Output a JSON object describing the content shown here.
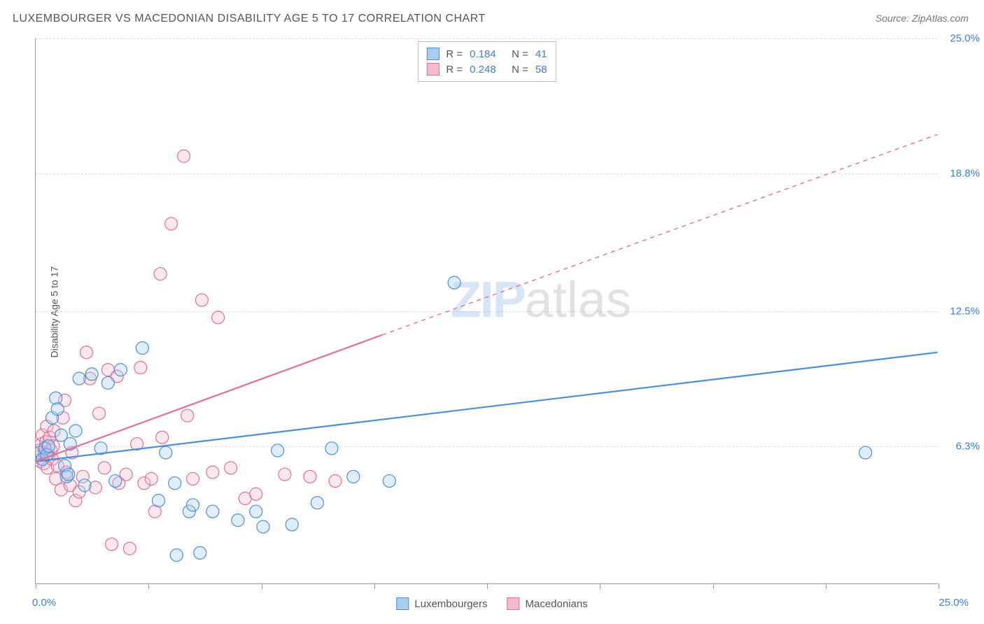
{
  "title": "LUXEMBOURGER VS MACEDONIAN DISABILITY AGE 5 TO 17 CORRELATION CHART",
  "source": "Source: ZipAtlas.com",
  "ylabel": "Disability Age 5 to 17",
  "watermark": {
    "zip": "ZIP",
    "atlas": "atlas"
  },
  "chart": {
    "type": "scatter",
    "xlim": [
      0,
      25
    ],
    "ylim": [
      0,
      25
    ],
    "x_origin_label": "0.0%",
    "x_max_label": "25.0%",
    "y_ticks": [
      {
        "v": 6.3,
        "label": "6.3%"
      },
      {
        "v": 12.5,
        "label": "12.5%"
      },
      {
        "v": 18.8,
        "label": "18.8%"
      },
      {
        "v": 25.0,
        "label": "25.0%"
      }
    ],
    "x_tick_positions": [
      0,
      3.125,
      6.25,
      9.375,
      12.5,
      15.625,
      18.75,
      21.875,
      25
    ],
    "grid_color": "#dddddd",
    "axis_color": "#999999",
    "background_color": "#ffffff",
    "marker_radius": 9,
    "marker_stroke_width": 1.2,
    "marker_fill_opacity": 0.35,
    "line_width": 2.2
  },
  "series": [
    {
      "key": "luxembourgers",
      "name": "Luxembourgers",
      "color_stroke": "#4a8fd9",
      "color_fill": "#a9cdf0",
      "r_value": "0.184",
      "n_value": "41",
      "trend": {
        "x1": 0,
        "y1": 5.6,
        "x2": 25,
        "y2": 10.6,
        "dashed": false
      },
      "points": [
        [
          0.1,
          6.0
        ],
        [
          0.18,
          5.7
        ],
        [
          0.25,
          6.2
        ],
        [
          0.3,
          5.9
        ],
        [
          0.35,
          6.3
        ],
        [
          0.45,
          7.6
        ],
        [
          0.55,
          8.5
        ],
        [
          0.6,
          8.0
        ],
        [
          0.7,
          6.8
        ],
        [
          0.8,
          5.4
        ],
        [
          0.85,
          4.9
        ],
        [
          0.9,
          5.0
        ],
        [
          1.1,
          7.0
        ],
        [
          1.2,
          9.4
        ],
        [
          1.35,
          4.5
        ],
        [
          1.55,
          9.6
        ],
        [
          1.8,
          6.2
        ],
        [
          2.0,
          9.2
        ],
        [
          2.2,
          4.7
        ],
        [
          2.35,
          9.8
        ],
        [
          2.95,
          10.8
        ],
        [
          3.4,
          3.8
        ],
        [
          3.6,
          6.0
        ],
        [
          3.85,
          4.6
        ],
        [
          3.9,
          1.3
        ],
        [
          4.25,
          3.3
        ],
        [
          4.35,
          3.6
        ],
        [
          4.55,
          1.4
        ],
        [
          4.9,
          3.3
        ],
        [
          5.6,
          2.9
        ],
        [
          6.1,
          3.3
        ],
        [
          6.3,
          2.6
        ],
        [
          6.7,
          6.1
        ],
        [
          7.1,
          2.7
        ],
        [
          7.8,
          3.7
        ],
        [
          8.2,
          6.2
        ],
        [
          8.8,
          4.9
        ],
        [
          9.8,
          4.7
        ],
        [
          11.6,
          13.8
        ],
        [
          23.0,
          6.0
        ],
        [
          0.95,
          6.4
        ]
      ]
    },
    {
      "key": "macedonians",
      "name": "Macedonians",
      "color_stroke": "#e26f94",
      "color_fill": "#f3bcd0",
      "r_value": "0.248",
      "n_value": "58",
      "trend": {
        "x1": 0,
        "y1": 5.6,
        "x2": 9.6,
        "y2": 11.4,
        "dashed": false
      },
      "trend_ext": {
        "x1": 9.6,
        "y1": 11.4,
        "x2": 25,
        "y2": 20.6,
        "dashed": true
      },
      "points": [
        [
          0.05,
          5.8
        ],
        [
          0.08,
          6.1
        ],
        [
          0.12,
          5.6
        ],
        [
          0.15,
          6.4
        ],
        [
          0.18,
          6.8
        ],
        [
          0.22,
          5.5
        ],
        [
          0.25,
          6.0
        ],
        [
          0.28,
          6.5
        ],
        [
          0.3,
          7.2
        ],
        [
          0.32,
          5.3
        ],
        [
          0.35,
          5.9
        ],
        [
          0.38,
          6.7
        ],
        [
          0.42,
          6.1
        ],
        [
          0.45,
          5.7
        ],
        [
          0.48,
          6.3
        ],
        [
          0.5,
          7.0
        ],
        [
          0.55,
          4.8
        ],
        [
          0.6,
          5.4
        ],
        [
          0.7,
          4.3
        ],
        [
          0.75,
          7.6
        ],
        [
          0.8,
          8.4
        ],
        [
          0.85,
          5.1
        ],
        [
          0.95,
          4.5
        ],
        [
          1.0,
          6.0
        ],
        [
          1.1,
          3.8
        ],
        [
          1.2,
          4.2
        ],
        [
          1.3,
          4.9
        ],
        [
          1.4,
          10.6
        ],
        [
          1.5,
          9.4
        ],
        [
          1.65,
          4.4
        ],
        [
          1.75,
          7.8
        ],
        [
          1.9,
          5.3
        ],
        [
          2.0,
          9.8
        ],
        [
          2.1,
          1.8
        ],
        [
          2.25,
          9.5
        ],
        [
          2.3,
          4.6
        ],
        [
          2.5,
          5.0
        ],
        [
          2.6,
          1.6
        ],
        [
          2.8,
          6.4
        ],
        [
          2.9,
          9.9
        ],
        [
          3.0,
          4.6
        ],
        [
          3.2,
          4.8
        ],
        [
          3.3,
          3.3
        ],
        [
          3.45,
          14.2
        ],
        [
          3.5,
          6.7
        ],
        [
          3.75,
          16.5
        ],
        [
          4.1,
          19.6
        ],
        [
          4.2,
          7.7
        ],
        [
          4.35,
          4.8
        ],
        [
          4.6,
          13.0
        ],
        [
          4.9,
          5.1
        ],
        [
          5.05,
          12.2
        ],
        [
          5.4,
          5.3
        ],
        [
          5.8,
          3.9
        ],
        [
          6.1,
          4.1
        ],
        [
          6.9,
          5.0
        ],
        [
          7.6,
          4.9
        ],
        [
          8.3,
          4.7
        ]
      ]
    }
  ],
  "legend_bottom": [
    {
      "key": "luxembourgers",
      "label": "Luxembourgers"
    },
    {
      "key": "macedonians",
      "label": "Macedonians"
    }
  ]
}
